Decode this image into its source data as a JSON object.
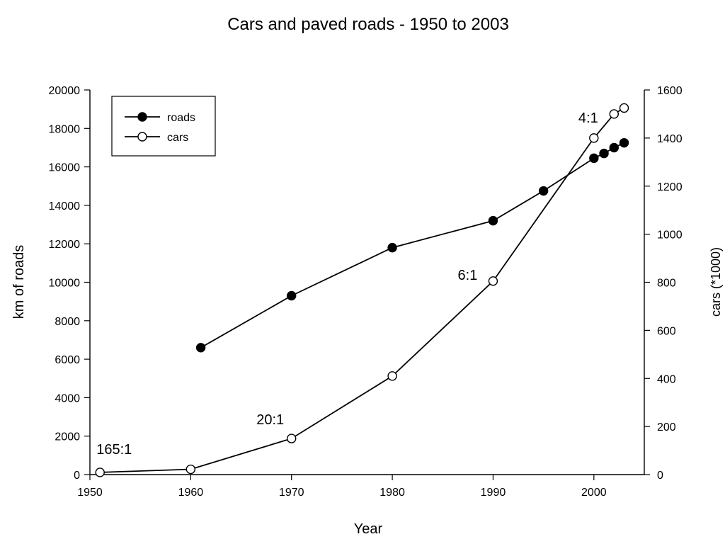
{
  "chart_data": {
    "type": "line",
    "title": "Cars and paved roads - 1950 to 2003",
    "xlabel": "Year",
    "ylabel": "km of roads",
    "y2label": "cars (*1000)",
    "xlim": [
      1950,
      2005
    ],
    "ylim": [
      0,
      20000
    ],
    "y2lim": [
      0,
      1600
    ],
    "x_ticks": [
      1950,
      1960,
      1970,
      1980,
      1990,
      2000
    ],
    "y_ticks": [
      0,
      2000,
      4000,
      6000,
      8000,
      10000,
      12000,
      14000,
      16000,
      18000,
      20000
    ],
    "y2_ticks": [
      0,
      200,
      400,
      600,
      800,
      1000,
      1200,
      1400,
      1600
    ],
    "grid": false,
    "legend": "top-left",
    "series": [
      {
        "name": "roads",
        "axis": "left",
        "marker": "filled-circle",
        "x": [
          1961,
          1970,
          1980,
          1990,
          1995,
          2000,
          2001,
          2002,
          2003
        ],
        "values": [
          6600,
          9300,
          11800,
          13200,
          14750,
          16450,
          16700,
          17000,
          17250
        ]
      },
      {
        "name": "cars",
        "axis": "right",
        "marker": "open-circle",
        "x": [
          1951,
          1960,
          1970,
          1980,
          1990,
          2000,
          2002,
          2003
        ],
        "values": [
          9,
          22,
          150,
          410,
          805,
          1400,
          1500,
          1525
        ]
      }
    ],
    "annotations": [
      {
        "text": "165:1",
        "x": 1951
      },
      {
        "text": "20:1",
        "x": 1970
      },
      {
        "text": "6:1",
        "x": 1990
      },
      {
        "text": "4:1",
        "x": 2000
      }
    ]
  }
}
